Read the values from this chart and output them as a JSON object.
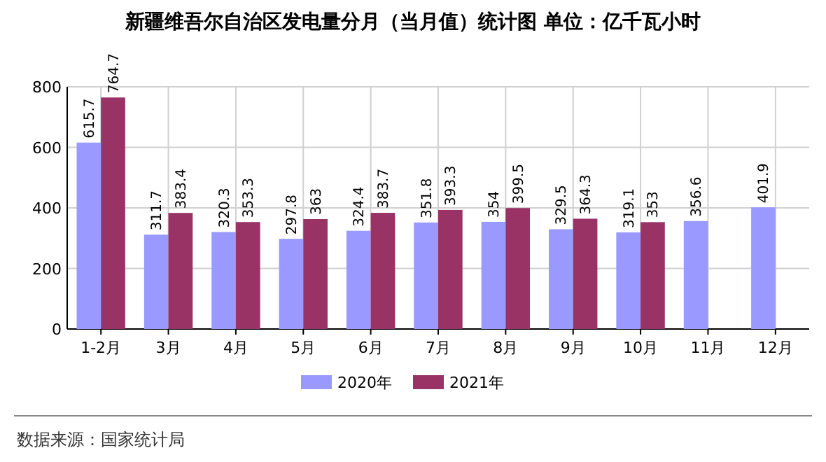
{
  "chart_data": {
    "type": "bar",
    "title": "新疆维吾尔自治区发电量分月（当月值）统计图 单位：亿千瓦小时",
    "categories": [
      "1-2月",
      "3月",
      "4月",
      "5月",
      "6月",
      "7月",
      "8月",
      "9月",
      "10月",
      "11月",
      "12月"
    ],
    "series": [
      {
        "name": "2020年",
        "color": "#9999ff",
        "values": [
          615.7,
          311.7,
          320.3,
          297.8,
          324.4,
          351.8,
          354,
          329.5,
          319.1,
          356.6,
          401.9
        ]
      },
      {
        "name": "2021年",
        "color": "#993366",
        "values": [
          764.7,
          383.4,
          353.3,
          363,
          383.7,
          393.3,
          399.5,
          364.3,
          353,
          null,
          null
        ]
      }
    ],
    "ylim": [
      0,
      800
    ],
    "yticks": [
      0,
      200,
      400,
      600,
      800
    ],
    "grid": true,
    "legend": "bottom",
    "data_labels": true,
    "annotations": [
      "数据来源：国家统计局"
    ]
  }
}
